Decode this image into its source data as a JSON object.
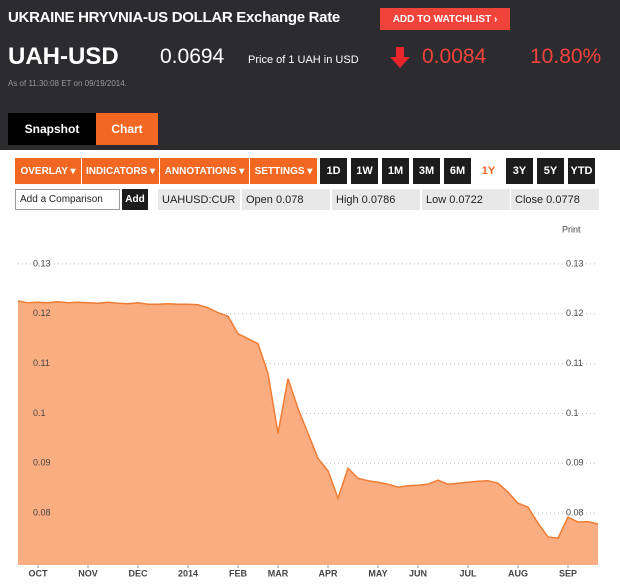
{
  "header": {
    "title": "UKRAINE HRYVNIA-US DOLLAR Exchange Rate",
    "watchlist": "ADD TO WATCHLIST ›",
    "ticker": "UAH-USD",
    "price": "0.0694",
    "price_note": "Price of 1 UAH in USD",
    "change": "0.0084",
    "change_pct": "10.80%",
    "as_of": "As of 11:30:08 ET on 09/19/2014.",
    "tabs": [
      "Snapshot",
      "Chart"
    ]
  },
  "toolbar": {
    "menus": [
      "OVERLAY ▾",
      "INDICATORS ▾",
      "ANNOTATIONS ▾",
      "SETTINGS ▾"
    ],
    "ranges": [
      "1D",
      "1W",
      "1M",
      "3M",
      "6M",
      "1Y",
      "3Y",
      "5Y",
      "YTD"
    ],
    "comparison": "Add a Comparison",
    "add": "Add",
    "symbol": "UAHUSD:CUR",
    "stats": [
      "Open 0.078",
      "High 0.0786",
      "Low 0.0722",
      "Close 0.0778"
    ],
    "print": "Print"
  },
  "chart_data": {
    "type": "area",
    "color": "#f07c34",
    "fill": "#f9ad80",
    "categories": [
      null,
      null,
      "OCT",
      null,
      null,
      null,
      null,
      "NOV",
      null,
      null,
      null,
      null,
      "DEC",
      null,
      null,
      null,
      null,
      "2014",
      null,
      null,
      null,
      null,
      "FEB",
      null,
      null,
      null,
      "MAR",
      null,
      null,
      null,
      null,
      "APR",
      null,
      null,
      null,
      null,
      "MAY",
      null,
      null,
      null,
      "JUN",
      null,
      null,
      null,
      null,
      "JUL",
      null,
      null,
      null,
      null,
      "AUG",
      null,
      null,
      null,
      null,
      "SEP",
      null,
      null,
      null
    ],
    "values": [
      0.1226,
      0.1222,
      0.1223,
      0.1222,
      0.1224,
      0.1222,
      0.1223,
      0.1222,
      0.1221,
      0.1223,
      0.1221,
      0.122,
      0.1222,
      0.1219,
      0.1219,
      0.122,
      0.1219,
      0.1219,
      0.1218,
      0.1212,
      0.1202,
      0.1195,
      0.116,
      0.115,
      0.114,
      0.108,
      0.096,
      0.107,
      0.101,
      0.096,
      0.091,
      0.0885,
      0.083,
      0.089,
      0.087,
      0.0865,
      0.0862,
      0.0858,
      0.0852,
      0.0855,
      0.0856,
      0.0858,
      0.0866,
      0.0858,
      0.086,
      0.0862,
      0.0864,
      0.0865,
      0.086,
      0.0842,
      0.082,
      0.0812,
      0.078,
      0.0752,
      0.075,
      0.0792,
      0.0782,
      0.0783,
      0.0778
    ],
    "ylim": [
      0.07,
      0.137
    ],
    "yticks": [
      0.08,
      0.09,
      0.1,
      0.11,
      0.12,
      0.13
    ],
    "grid": true
  }
}
